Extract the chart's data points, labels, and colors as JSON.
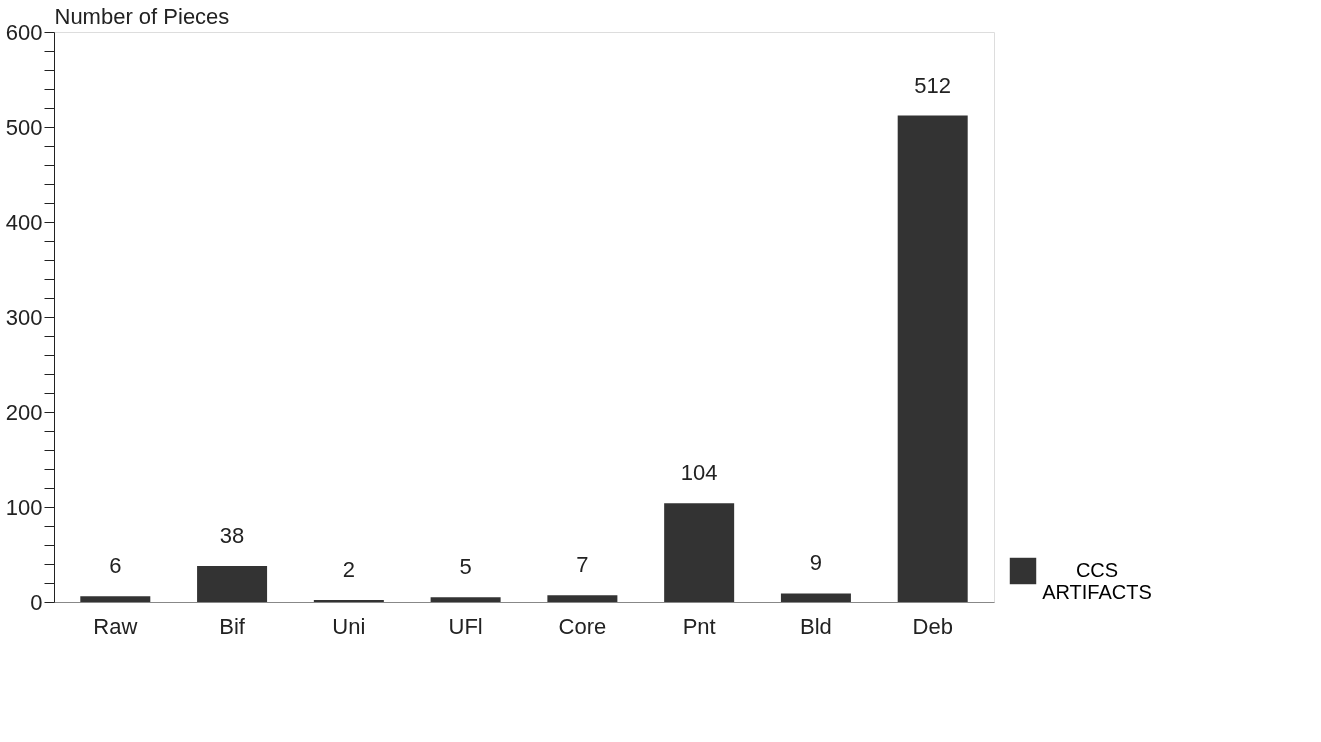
{
  "chart_data": {
    "type": "bar",
    "ylabel": "Number of Pieces",
    "categories": [
      "Raw",
      "Bif",
      "Uni",
      "UFl",
      "Core",
      "Pnt",
      "Bld",
      "Deb"
    ],
    "series": [
      {
        "name": "CCS ARTIFACTS",
        "color": "#333333",
        "values": [
          6,
          38,
          2,
          5,
          7,
          104,
          9,
          512
        ]
      }
    ],
    "ylim": [
      0,
      600
    ],
    "yticks": [
      0,
      {
        "value": 20,
        "label": null
      },
      {
        "value": 40,
        "label": null
      },
      {
        "value": 60,
        "label": null
      },
      {
        "value": 80,
        "label": null
      },
      100,
      {
        "value": 120,
        "label": null
      },
      {
        "value": 140,
        "label": null
      },
      {
        "value": 160,
        "label": null
      },
      {
        "value": 180,
        "label": null
      },
      200,
      {
        "value": 220,
        "label": null
      },
      {
        "value": 240,
        "label": null
      },
      {
        "value": 260,
        "label": null
      },
      {
        "value": 280,
        "label": null
      },
      300,
      {
        "value": 320,
        "label": null
      },
      {
        "value": 340,
        "label": null
      },
      {
        "value": 360,
        "label": null
      },
      {
        "value": 380,
        "label": null
      },
      400,
      {
        "value": 420,
        "label": null
      },
      {
        "value": 440,
        "label": null
      },
      {
        "value": 460,
        "label": null
      },
      {
        "value": 480,
        "label": null
      },
      500,
      {
        "value": 520,
        "label": null
      },
      {
        "value": 540,
        "label": null
      },
      {
        "value": 560,
        "label": null
      },
      {
        "value": 580,
        "label": null
      },
      600
    ],
    "data_labels": true,
    "grid": false,
    "legend": "bottom right"
  }
}
